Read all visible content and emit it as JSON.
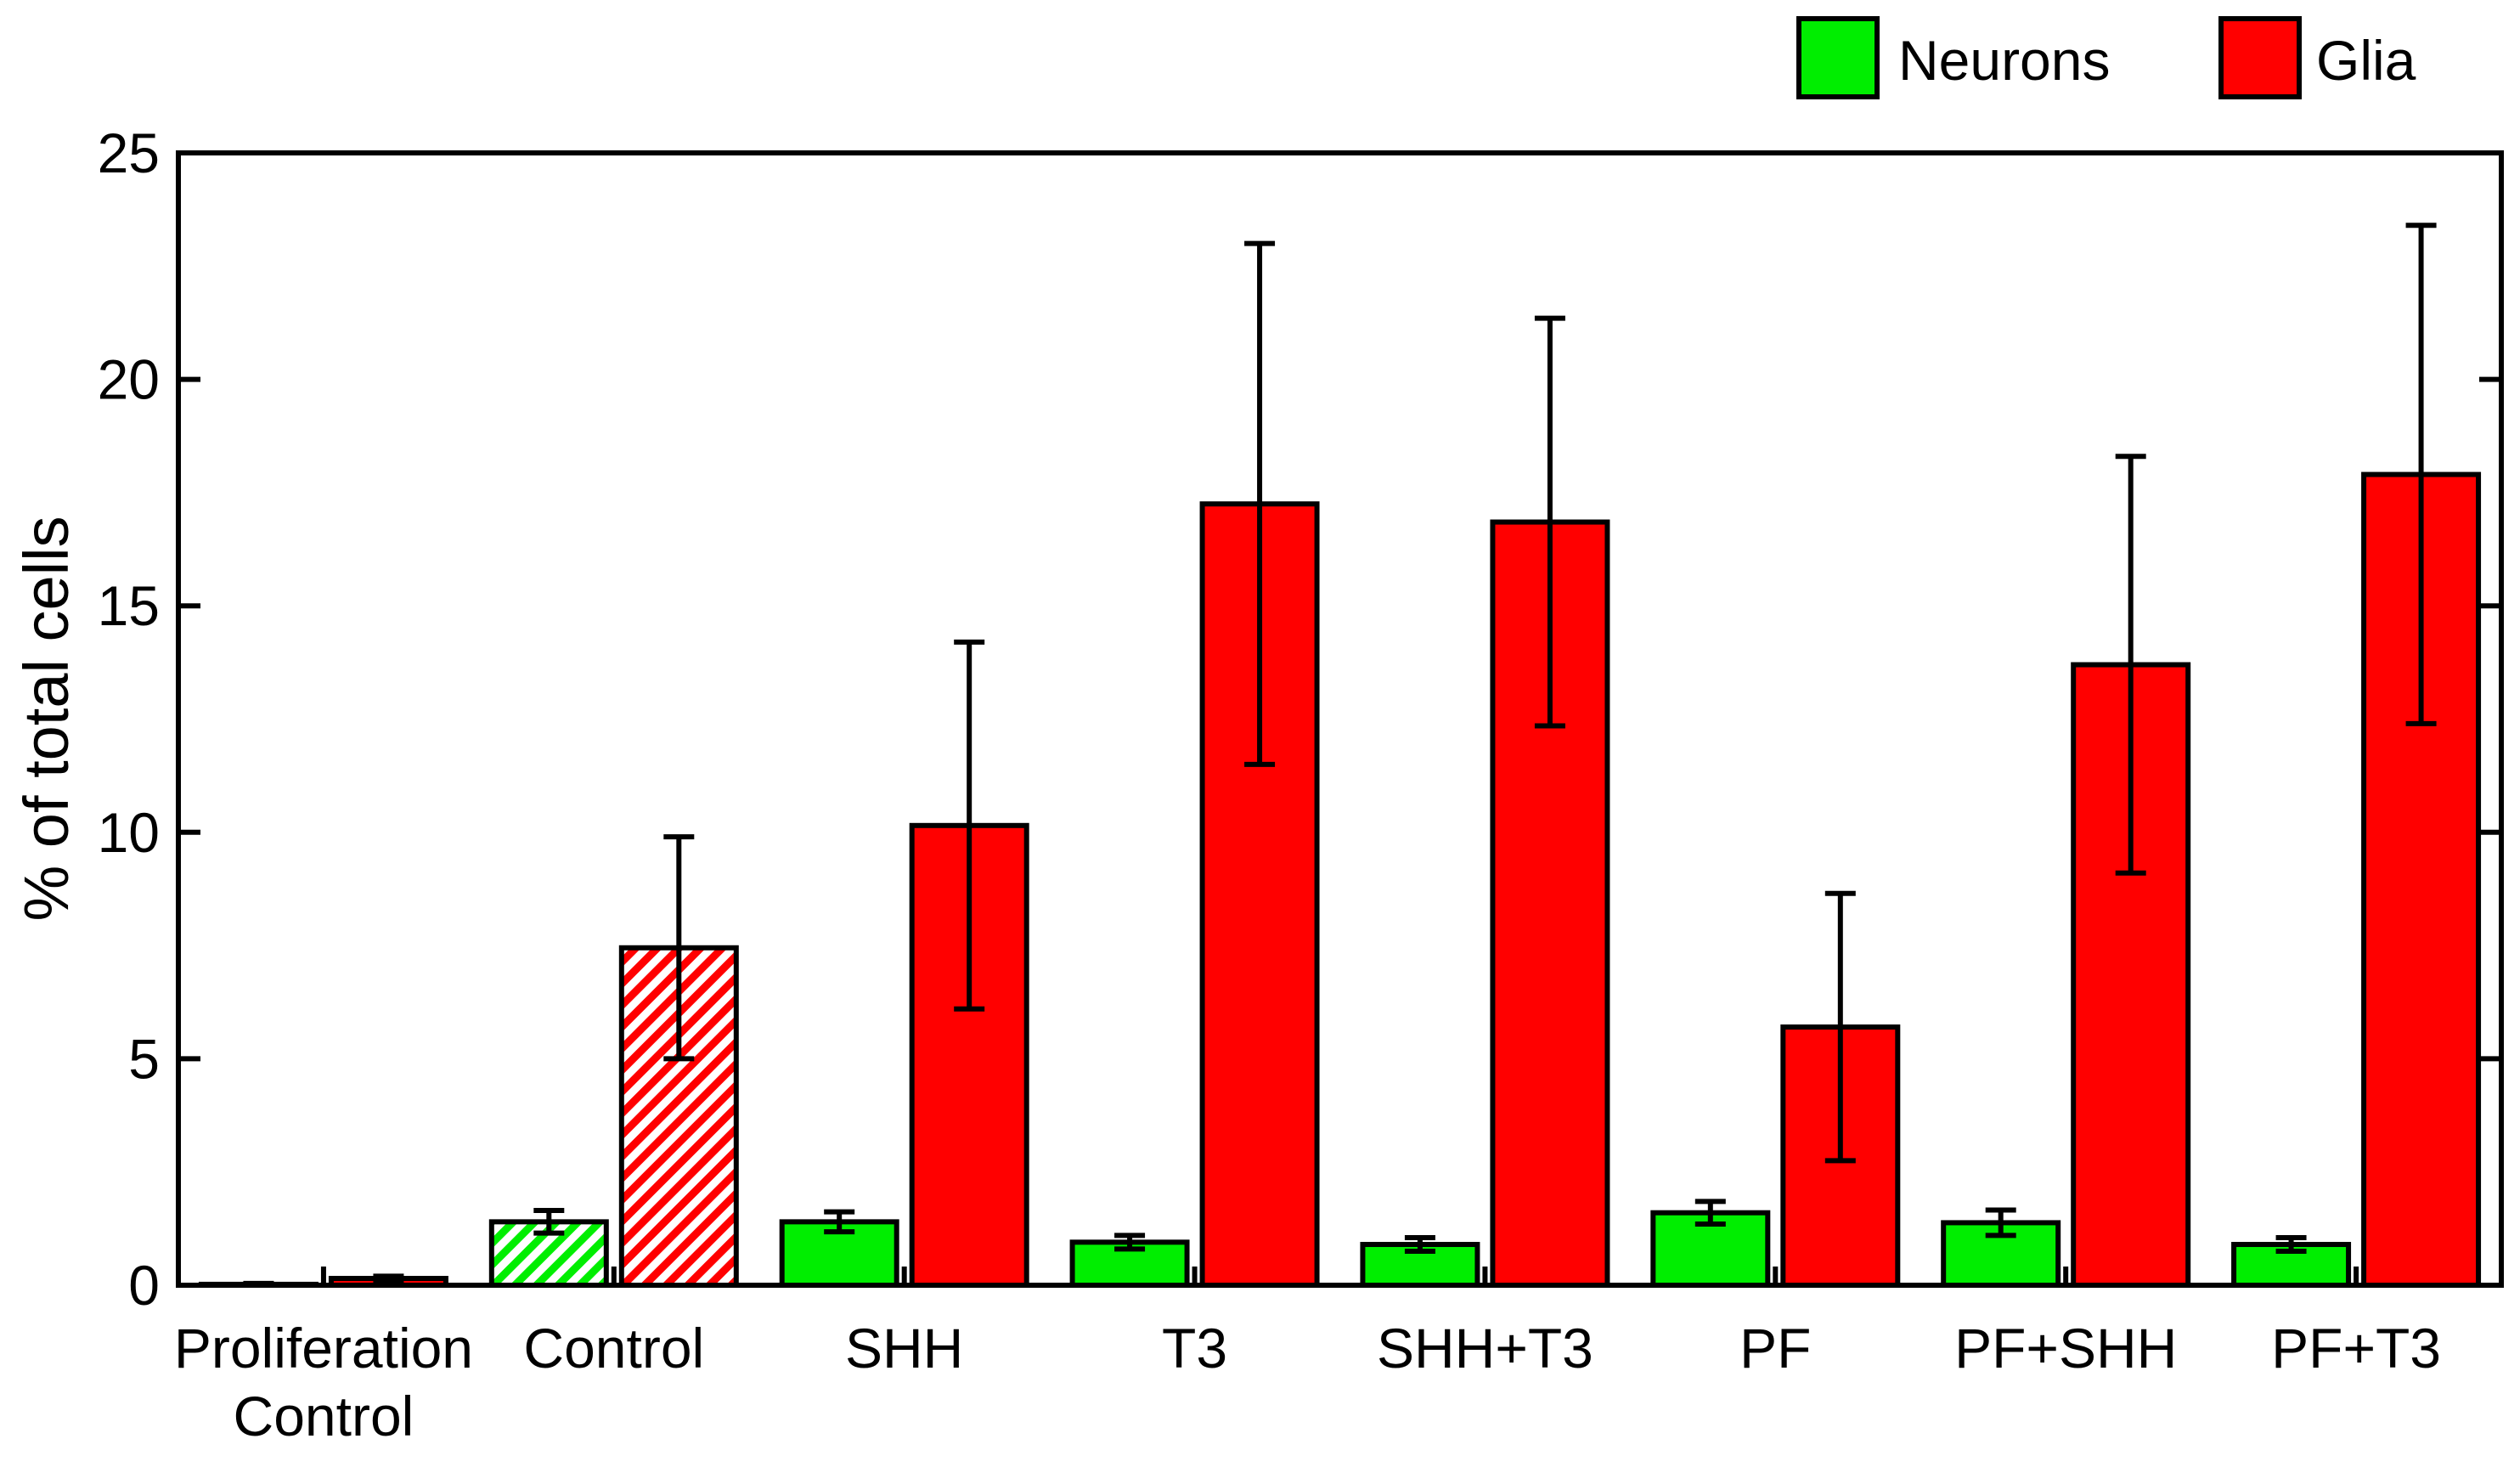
{
  "chart_data": {
    "type": "bar",
    "title": "",
    "xlabel": "",
    "ylabel": "% of total cells",
    "ylim": [
      0,
      25
    ],
    "yticks": [
      0,
      5,
      10,
      15,
      20,
      25
    ],
    "grid": false,
    "legend_position": "top-right",
    "categories": [
      [
        "Proliferation",
        "Control"
      ],
      [
        "Control"
      ],
      [
        "SHH"
      ],
      [
        "T3"
      ],
      [
        "SHH+T3"
      ],
      [
        "PF"
      ],
      [
        "PF+SHH"
      ],
      [
        "PF+T3"
      ]
    ],
    "series": [
      {
        "name": "Neurons",
        "color": "#00ee00",
        "values": [
          0.02,
          1.4,
          1.4,
          0.95,
          0.9,
          1.6,
          1.38,
          0.9
        ],
        "errors": [
          0.02,
          0.25,
          0.22,
          0.15,
          0.15,
          0.25,
          0.28,
          0.15
        ],
        "hatched": [
          false,
          true,
          false,
          false,
          false,
          false,
          false,
          false
        ]
      },
      {
        "name": "Glia",
        "color": "#ff0000",
        "values": [
          0.15,
          7.45,
          10.15,
          17.25,
          16.85,
          5.7,
          13.7,
          17.9
        ],
        "errors": [
          0.05,
          2.45,
          4.05,
          5.75,
          4.5,
          2.95,
          4.6,
          5.5
        ],
        "hatched": [
          false,
          true,
          false,
          false,
          false,
          false,
          false,
          false
        ]
      }
    ]
  }
}
